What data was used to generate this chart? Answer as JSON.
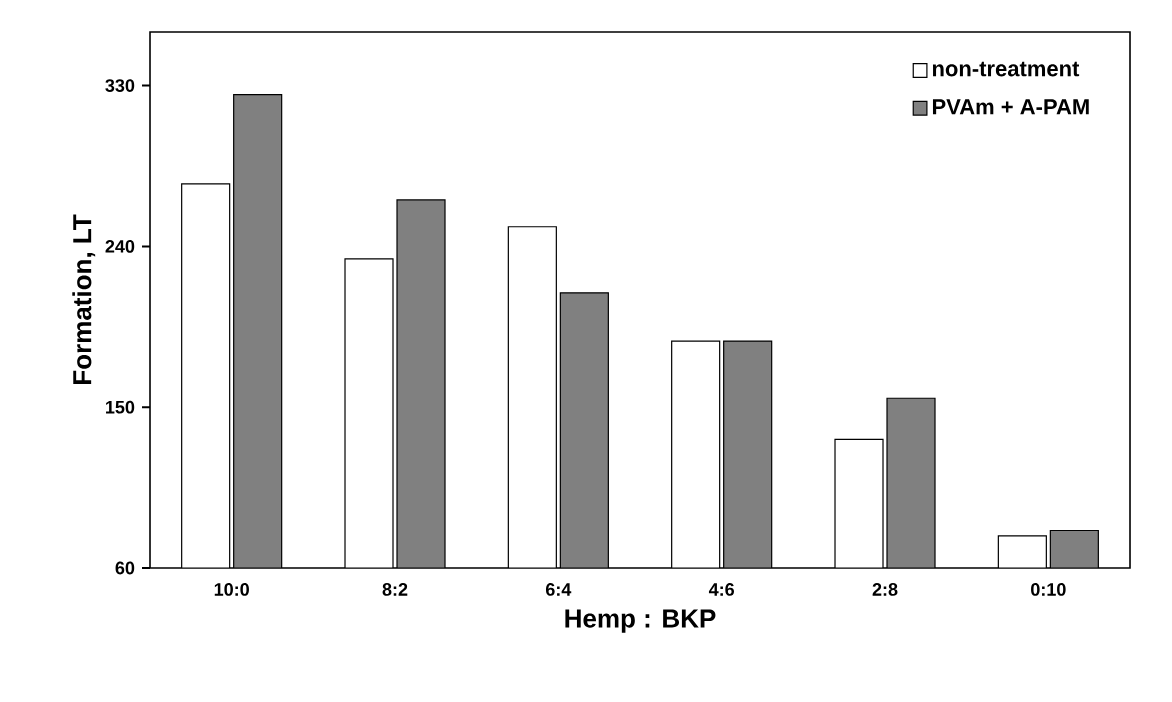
{
  "chart_data": {
    "type": "bar",
    "xlabel": "Hemp : BKP",
    "ylabel": "Formation, LT",
    "categories": [
      "10:0",
      "8:2",
      "6:4",
      "4:6",
      "2:8",
      "0:10"
    ],
    "series": [
      {
        "name": "non-treatment",
        "color": "#ffffff",
        "values": [
          275,
          233,
          251,
          187,
          132,
          78
        ]
      },
      {
        "name": "PVAm + A-PAM",
        "color": "#808080",
        "values": [
          325,
          266,
          214,
          187,
          155,
          81
        ]
      }
    ],
    "ylim": [
      60,
      360
    ],
    "yticks": [
      60,
      150,
      240,
      330
    ],
    "grid": false,
    "legend": "top right"
  }
}
